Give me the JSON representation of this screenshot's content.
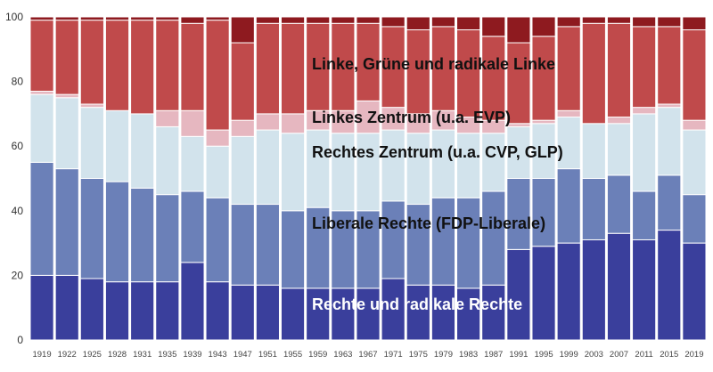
{
  "chart_data": {
    "type": "bar",
    "stacked": true,
    "categories": [
      "1919",
      "1922",
      "1925",
      "1928",
      "1931",
      "1935",
      "1939",
      "1943",
      "1947",
      "1951",
      "1955",
      "1959",
      "1963",
      "1967",
      "1971",
      "1975",
      "1979",
      "1983",
      "1987",
      "1991",
      "1995",
      "1999",
      "2003",
      "2007",
      "2011",
      "2015",
      "2019"
    ],
    "ylim": [
      0,
      100
    ],
    "yticks": [
      0,
      20,
      40,
      60,
      80,
      100
    ],
    "grid": false,
    "series": [
      {
        "name": "Rechte und radikale Rechte",
        "color": "#3a3f9c",
        "label_color": "#ffffff",
        "values": [
          20,
          20,
          19,
          18,
          18,
          18,
          24,
          18,
          17,
          17,
          16,
          16,
          16,
          16,
          19,
          17,
          17,
          16,
          17,
          28,
          29,
          30,
          31,
          33,
          31,
          34,
          30
        ]
      },
      {
        "name": "Liberale Rechte (FDP-Liberale)",
        "color": "#6b80b8",
        "label_color": "#111111",
        "values": [
          35,
          33,
          31,
          31,
          29,
          27,
          22,
          26,
          25,
          25,
          24,
          25,
          24,
          24,
          24,
          25,
          27,
          28,
          29,
          22,
          21,
          23,
          19,
          18,
          15,
          17,
          15
        ]
      },
      {
        "name": "Rechtes Zentrum (u.a. CVP, GLP)",
        "color": "#d2e3ec",
        "label_color": "#111111",
        "values": [
          21,
          22,
          22,
          22,
          23,
          21,
          17,
          16,
          21,
          23,
          24,
          24,
          24,
          24,
          22,
          22,
          21,
          20,
          18,
          16,
          17,
          16,
          17,
          16,
          24,
          21,
          20
        ]
      },
      {
        "name": "Linkes Zentrum (u.a. EVP)",
        "color": "#e6b7c0",
        "label_color": "#111111",
        "values": [
          1,
          1,
          1,
          0,
          0,
          5,
          8,
          5,
          5,
          5,
          6,
          6,
          7,
          10,
          7,
          6,
          6,
          5,
          4,
          1,
          1,
          2,
          0,
          2,
          2,
          1,
          3
        ]
      },
      {
        "name": "Linke, Grüne und radikale Linke",
        "color": "#c04a4b",
        "label_color": "#111111",
        "values": [
          22,
          23,
          26,
          28,
          29,
          28,
          27,
          34,
          24,
          28,
          28,
          27,
          27,
          24,
          25,
          26,
          26,
          27,
          26,
          25,
          26,
          26,
          31,
          29,
          25,
          24,
          28
        ]
      },
      {
        "name": "",
        "color": "#8e1a1f",
        "label_color": "#ffffff",
        "values": [
          1,
          1,
          1,
          1,
          1,
          1,
          2,
          1,
          8,
          2,
          2,
          2,
          2,
          2,
          3,
          4,
          3,
          4,
          6,
          8,
          6,
          3,
          2,
          2,
          3,
          3,
          4
        ]
      }
    ]
  }
}
